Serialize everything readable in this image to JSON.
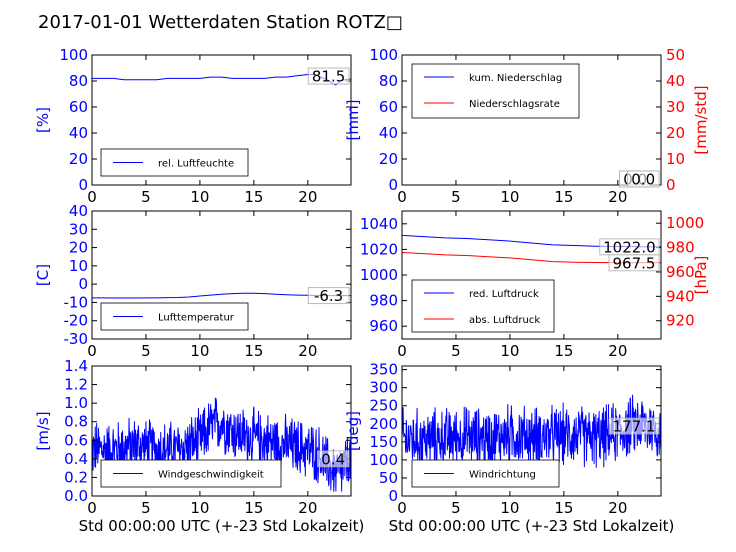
{
  "title": "2017-01-01 Wetterdaten Station ROTZ□",
  "colors": {
    "left_axis": "#0000ff",
    "right_axis": "#ff0000",
    "text": "#000000"
  },
  "chart_data": [
    {
      "id": "humidity",
      "type": "line",
      "x_range": [
        0,
        24
      ],
      "xticks": [
        0,
        5,
        10,
        15,
        20
      ],
      "ylim": [
        0,
        100
      ],
      "yticks": [
        0,
        20,
        40,
        60,
        80,
        100
      ],
      "ylabel": "[%]",
      "legend_position": "lower-left",
      "series": [
        {
          "name": "rel. Luftfeuchte",
          "color": "#0000ff",
          "x": [
            0,
            1,
            2,
            3,
            4,
            5,
            6,
            7,
            8,
            9,
            10,
            11,
            12,
            13,
            14,
            15,
            16,
            17,
            18,
            19,
            20,
            20.5,
            21,
            21.5,
            22,
            22.3,
            22.6,
            23,
            23.5,
            24
          ],
          "values": [
            82,
            82,
            82,
            81,
            81,
            81,
            81,
            82,
            82,
            82,
            82,
            83,
            83,
            82,
            82,
            82,
            82,
            83,
            83,
            84,
            85,
            85,
            84,
            82,
            80,
            78,
            77,
            80,
            81,
            81.5
          ]
        }
      ],
      "annotation": "81.5",
      "annotation_point": [
        24,
        81.5
      ]
    },
    {
      "id": "precipitation",
      "type": "line",
      "x_range": [
        0,
        24
      ],
      "xticks": [
        0,
        5,
        10,
        15,
        20
      ],
      "ylim": [
        0,
        100
      ],
      "yticks": [
        0,
        20,
        40,
        60,
        80,
        100
      ],
      "ylabel": "[mm]",
      "y2lim": [
        0,
        50
      ],
      "y2ticks": [
        0,
        10,
        20,
        30,
        40,
        50
      ],
      "y2label": "[mm/std]",
      "legend_position": "top-left",
      "series": [
        {
          "name": "kum. Niederschlag",
          "color": "#0000ff",
          "axis": "left",
          "x": [
            0,
            24
          ],
          "values": [
            0,
            0
          ]
        },
        {
          "name": "Niederschlagsrate",
          "color": "#ff0000",
          "axis": "right",
          "x": [
            0,
            24
          ],
          "values": [
            0,
            0
          ]
        }
      ],
      "annotations": [
        "0.0",
        "0.0"
      ]
    },
    {
      "id": "temperature",
      "type": "line",
      "x_range": [
        0,
        24
      ],
      "xticks": [
        0,
        5,
        10,
        15,
        20
      ],
      "ylim": [
        -30,
        40
      ],
      "yticks": [
        -30,
        -20,
        -10,
        0,
        10,
        20,
        30,
        40
      ],
      "ylabel": "[C]",
      "legend_position": "lower-left",
      "series": [
        {
          "name": "Lufttemperatur",
          "color": "#0000ff",
          "x": [
            0,
            1,
            2,
            3,
            4,
            5,
            6,
            7,
            8,
            9,
            10,
            11,
            12,
            13,
            14,
            15,
            16,
            17,
            18,
            19,
            20,
            21,
            22,
            23,
            24
          ],
          "values": [
            -7.5,
            -7.5,
            -7.6,
            -7.6,
            -7.6,
            -7.5,
            -7.5,
            -7.4,
            -7.3,
            -7,
            -6.5,
            -6,
            -5.5,
            -5.2,
            -5,
            -5,
            -5.2,
            -5.5,
            -5.8,
            -6,
            -6.1,
            -6.2,
            -6.3,
            -6.3,
            -6.3
          ]
        }
      ],
      "annotation": "-6.3",
      "annotation_point": [
        24,
        -6.3
      ]
    },
    {
      "id": "pressure",
      "type": "line",
      "x_range": [
        0,
        24
      ],
      "xticks": [
        0,
        5,
        10,
        15,
        20
      ],
      "ylim": [
        950,
        1050
      ],
      "yticks": [
        960,
        980,
        1000,
        1020,
        1040
      ],
      "y2lim": [
        905,
        1010
      ],
      "y2ticks": [
        920,
        940,
        960,
        980,
        1000
      ],
      "y2label": "[hPa]",
      "legend_position": "lower-left",
      "series": [
        {
          "name": "red. Luftdruck",
          "color": "#0000ff",
          "axis": "left",
          "x": [
            0,
            2,
            4,
            6,
            8,
            10,
            12,
            14,
            16,
            18,
            20,
            22,
            24
          ],
          "values": [
            1031,
            1030,
            1029,
            1028.5,
            1027.5,
            1026.5,
            1025,
            1023.5,
            1023,
            1022.5,
            1022.3,
            1022.1,
            1022
          ]
        },
        {
          "name": "abs. Luftdruck",
          "color": "#ff0000",
          "axis": "right",
          "x": [
            0,
            2,
            4,
            6,
            8,
            10,
            12,
            14,
            16,
            18,
            20,
            22,
            24
          ],
          "values": [
            976,
            975,
            974,
            973.5,
            972.5,
            971.5,
            970,
            968.5,
            968,
            967.8,
            967.6,
            967.5,
            967.5
          ]
        }
      ],
      "annotations": [
        "1022.0",
        "967.5"
      ],
      "annotation_points": [
        [
          24,
          1022.0
        ],
        [
          24,
          967.5
        ]
      ]
    },
    {
      "id": "windspeed",
      "type": "line",
      "x_range": [
        0,
        24
      ],
      "xticks": [
        0,
        5,
        10,
        15,
        20
      ],
      "xlabel": "Std 00:00:00 UTC (+-23 Std Lokalzeit)",
      "ylim": [
        0,
        1.4
      ],
      "yticks": [
        0.0,
        0.2,
        0.4,
        0.6,
        0.8,
        1.0,
        1.2,
        1.4
      ],
      "ylabel": "[m/s]",
      "legend_position": "lower-center",
      "series": [
        {
          "name": "Windgeschwindigkeit",
          "color": "#0000ff",
          "noisy": true,
          "x": [
            0,
            2,
            4,
            6,
            8,
            10,
            11,
            12,
            13,
            14,
            16,
            18,
            20,
            21,
            22,
            23,
            24
          ],
          "values": [
            0.5,
            0.5,
            0.55,
            0.5,
            0.5,
            0.6,
            0.75,
            0.8,
            0.7,
            0.65,
            0.6,
            0.55,
            0.5,
            0.45,
            0.3,
            0.25,
            0.4
          ]
        }
      ],
      "annotation": "0.4",
      "annotation_point": [
        24,
        0.4
      ]
    },
    {
      "id": "winddirection",
      "type": "line",
      "x_range": [
        0,
        24
      ],
      "xticks": [
        0,
        5,
        10,
        15,
        20
      ],
      "xlabel": "Std 00:00:00 UTC (+-23 Std Lokalzeit)",
      "ylim": [
        0,
        360
      ],
      "yticks": [
        0,
        50,
        100,
        150,
        200,
        250,
        300,
        350
      ],
      "ylabel": "[deg]",
      "legend_position": "lower-left",
      "series": [
        {
          "name": "Windrichtung",
          "color": "#0000ff",
          "noisy": true,
          "x": [
            0,
            2,
            4,
            6,
            8,
            10,
            12,
            14,
            16,
            18,
            20,
            21,
            22,
            23,
            24
          ],
          "values": [
            160,
            155,
            160,
            165,
            160,
            170,
            165,
            165,
            170,
            160,
            175,
            190,
            200,
            190,
            177.1
          ]
        }
      ],
      "annotation": "177.1",
      "annotation_point": [
        24,
        177.1
      ]
    }
  ]
}
